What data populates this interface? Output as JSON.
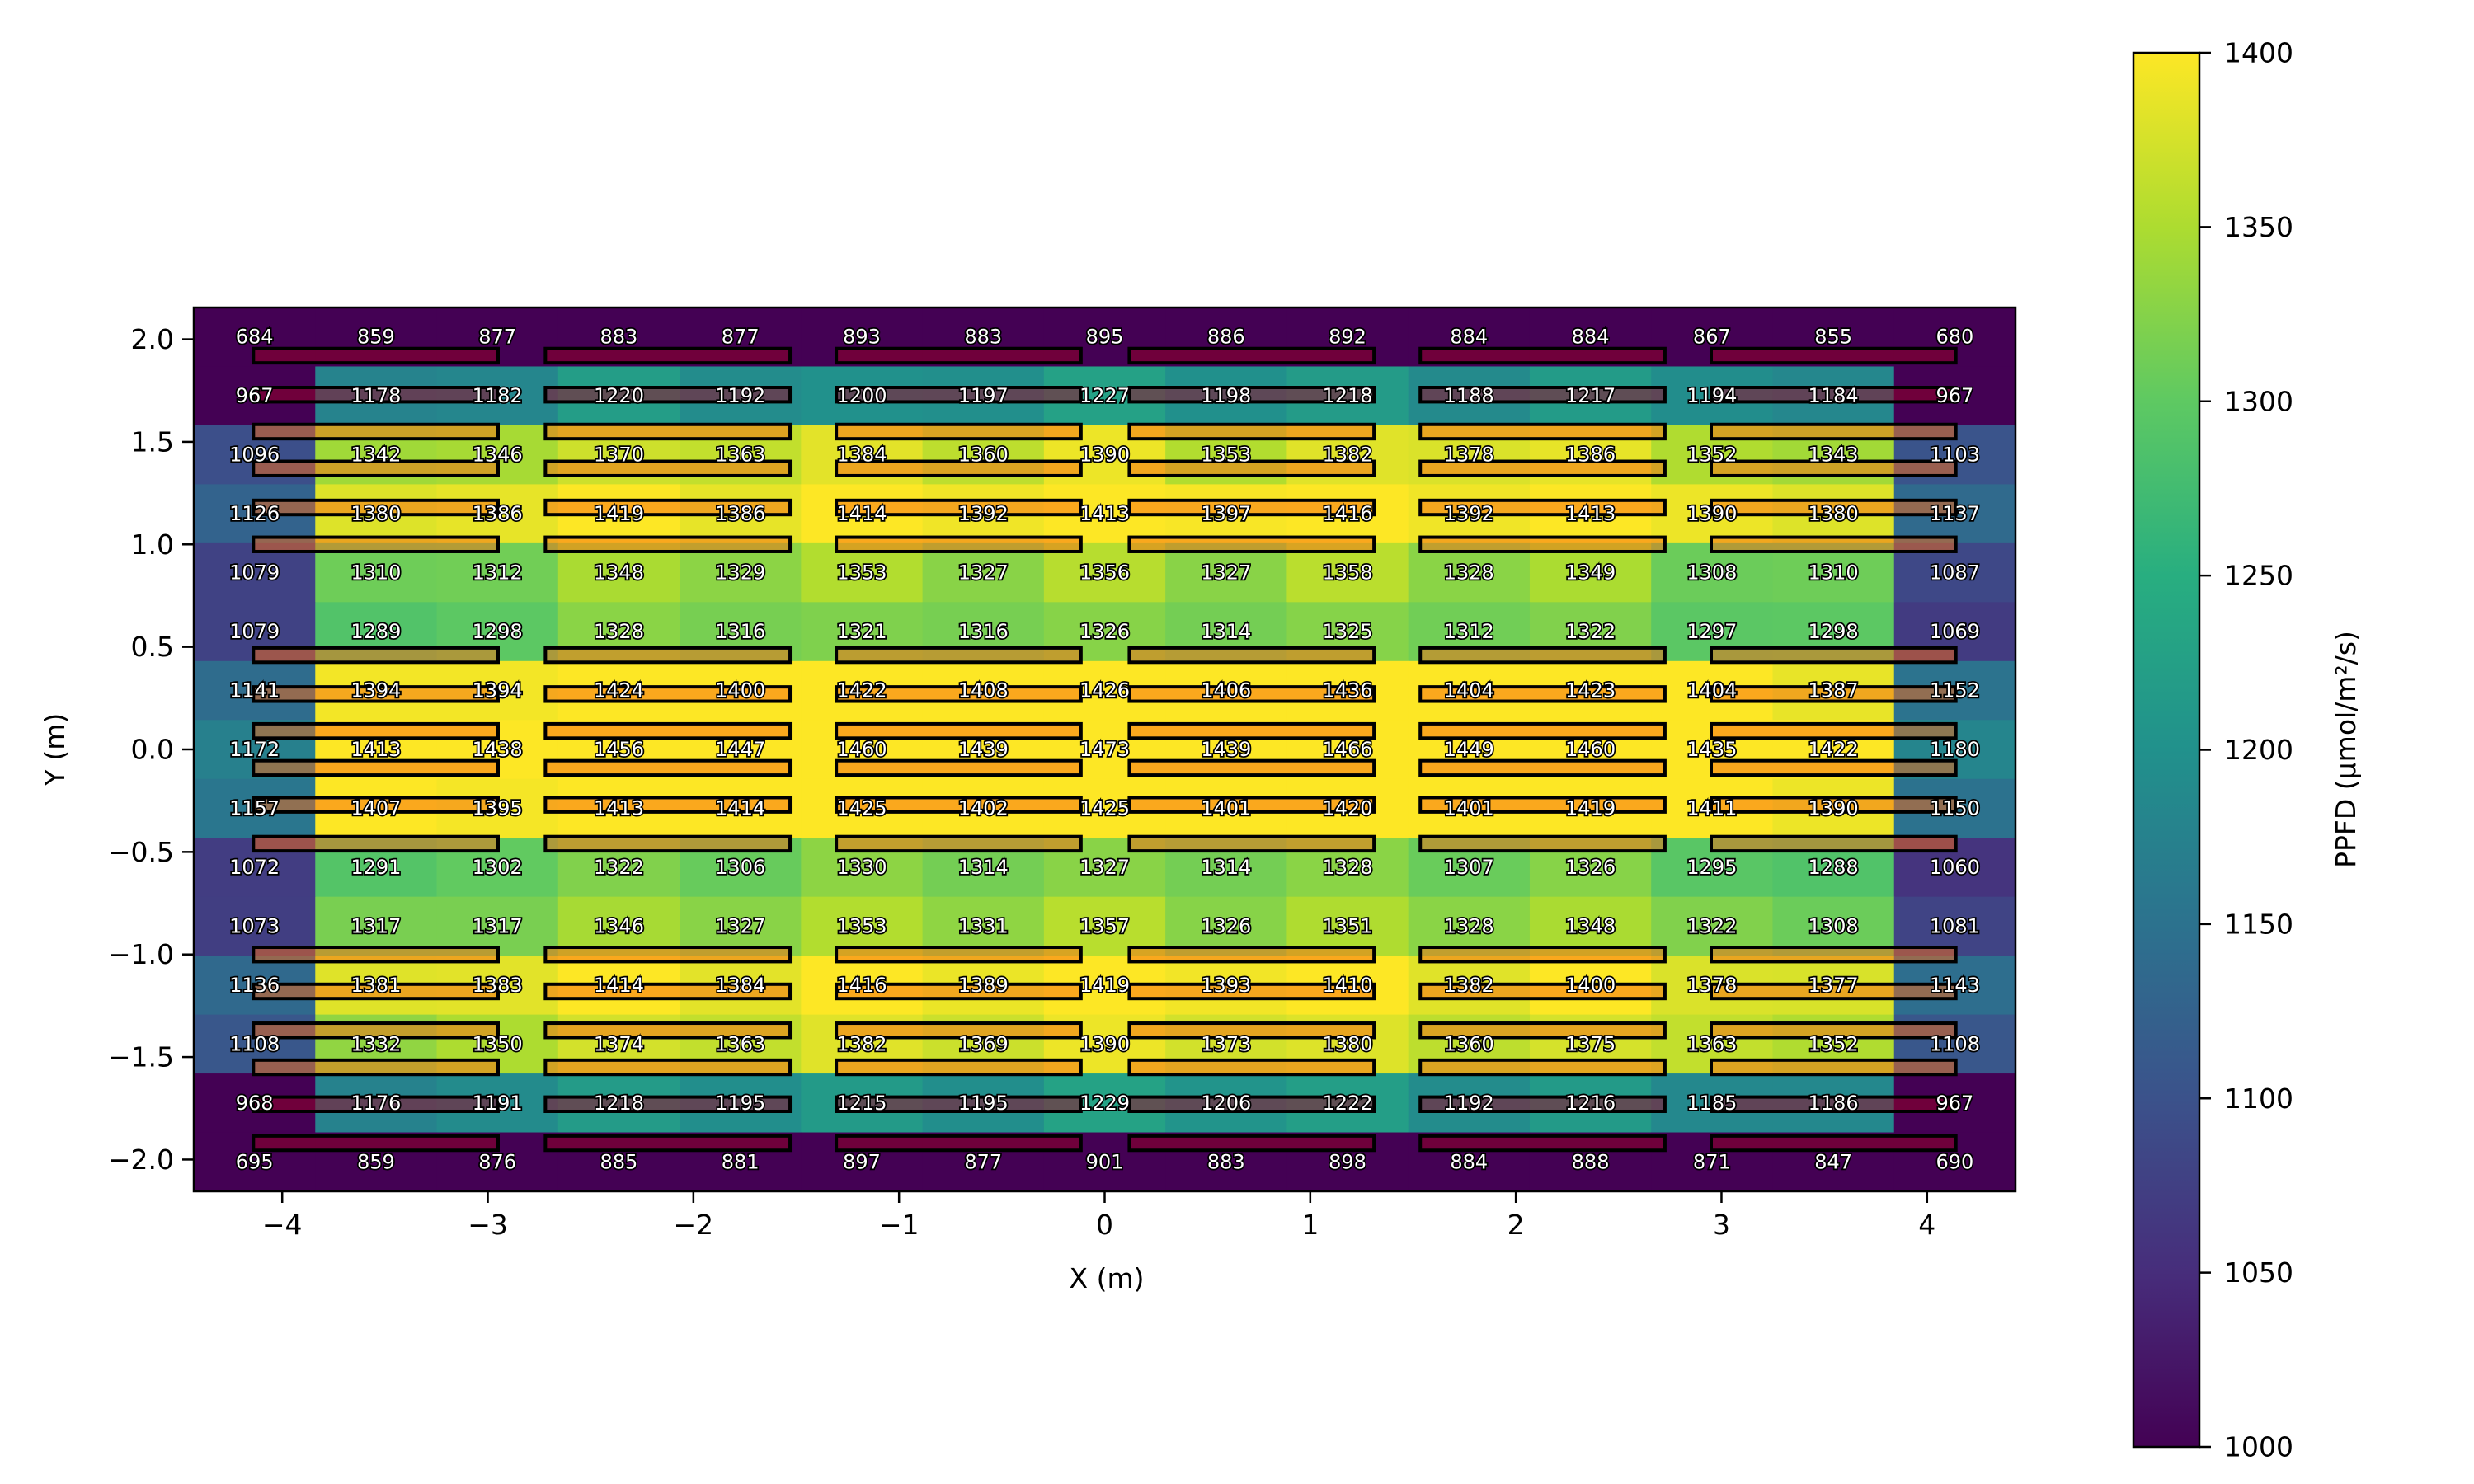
{
  "chart_data": {
    "type": "heatmap",
    "colormap": "viridis",
    "xlabel": "X (m)",
    "ylabel": "Y (m)",
    "colorbar_label": "PPFD (µmol/m²/s)",
    "xlim": [
      -4.43,
      4.43
    ],
    "ylim": [
      -2.155,
      2.155
    ],
    "clim": [
      1000,
      1400
    ],
    "xticks": [
      -4,
      -3,
      -2,
      -1,
      0,
      1,
      2,
      3,
      4
    ],
    "xtick_labels": [
      "−4",
      "−3",
      "−2",
      "−1",
      "0",
      "1",
      "2",
      "3",
      "4"
    ],
    "yticks": [
      2.0,
      1.5,
      1.0,
      0.5,
      0.0,
      -0.5,
      -1.0,
      -1.5,
      -2.0
    ],
    "ytick_labels": [
      "2.0",
      "1.5",
      "1.0",
      "0.5",
      "0.0",
      "−0.5",
      "−1.0",
      "−1.5",
      "−2.0"
    ],
    "colorbar_ticks": [
      1000,
      1050,
      1100,
      1150,
      1200,
      1250,
      1300,
      1350,
      1400
    ],
    "colorbar_tick_labels": [
      "1000",
      "1050",
      "1100",
      "1150",
      "1200",
      "1250",
      "1300",
      "1350",
      "1400"
    ],
    "grid": false,
    "values": [
      [
        684,
        859,
        877,
        883,
        877,
        893,
        883,
        895,
        886,
        892,
        884,
        884,
        867,
        855,
        680
      ],
      [
        967,
        1178,
        1182,
        1220,
        1192,
        1200,
        1197,
        1227,
        1198,
        1218,
        1188,
        1217,
        1194,
        1184,
        967
      ],
      [
        1096,
        1342,
        1346,
        1370,
        1363,
        1384,
        1360,
        1390,
        1353,
        1382,
        1378,
        1386,
        1352,
        1343,
        1103
      ],
      [
        1126,
        1380,
        1386,
        1419,
        1386,
        1414,
        1392,
        1413,
        1397,
        1416,
        1392,
        1413,
        1390,
        1380,
        1137
      ],
      [
        1079,
        1310,
        1312,
        1348,
        1329,
        1353,
        1327,
        1356,
        1327,
        1358,
        1328,
        1349,
        1308,
        1310,
        1087
      ],
      [
        1079,
        1289,
        1298,
        1328,
        1316,
        1321,
        1316,
        1326,
        1314,
        1325,
        1312,
        1322,
        1297,
        1298,
        1069
      ],
      [
        1141,
        1394,
        1394,
        1424,
        1400,
        1422,
        1408,
        1426,
        1406,
        1436,
        1404,
        1423,
        1404,
        1387,
        1152
      ],
      [
        1172,
        1413,
        1438,
        1456,
        1447,
        1460,
        1439,
        1473,
        1439,
        1466,
        1449,
        1460,
        1435,
        1422,
        1180
      ],
      [
        1157,
        1407,
        1395,
        1413,
        1414,
        1425,
        1402,
        1425,
        1401,
        1420,
        1401,
        1419,
        1411,
        1390,
        1150
      ],
      [
        1072,
        1291,
        1302,
        1322,
        1306,
        1330,
        1314,
        1327,
        1314,
        1328,
        1307,
        1326,
        1295,
        1288,
        1060
      ],
      [
        1073,
        1317,
        1317,
        1346,
        1327,
        1353,
        1331,
        1357,
        1326,
        1351,
        1328,
        1348,
        1322,
        1308,
        1081
      ],
      [
        1136,
        1381,
        1383,
        1414,
        1384,
        1416,
        1389,
        1419,
        1393,
        1410,
        1382,
        1400,
        1378,
        1377,
        1143
      ],
      [
        1108,
        1332,
        1350,
        1374,
        1363,
        1382,
        1369,
        1390,
        1373,
        1380,
        1360,
        1375,
        1363,
        1352,
        1108
      ],
      [
        968,
        1176,
        1191,
        1218,
        1195,
        1215,
        1195,
        1229,
        1206,
        1222,
        1192,
        1216,
        1185,
        1186,
        967
      ],
      [
        695,
        859,
        876,
        885,
        881,
        897,
        877,
        901,
        883,
        898,
        884,
        888,
        871,
        847,
        690
      ]
    ],
    "fixtures": {
      "x_centers": [
        -3.545,
        -2.125,
        -0.71,
        0.715,
        2.13,
        3.545
      ],
      "length": 1.19,
      "thickness": 0.07,
      "rows": [
        {
          "y": 1.92,
          "color": "#9b0022"
        },
        {
          "y": 1.73,
          "color": "#9b0022"
        },
        {
          "y": 1.55,
          "color": "#f76a15"
        },
        {
          "y": 1.37,
          "color": "#f76a15"
        },
        {
          "y": 1.18,
          "color": "#f76a15"
        },
        {
          "y": 1.0,
          "color": "#f76a15"
        },
        {
          "y": 0.46,
          "color": "#f76a15"
        },
        {
          "y": 0.27,
          "color": "#f76a15"
        },
        {
          "y": 0.09,
          "color": "#f76a15"
        },
        {
          "y": -0.09,
          "color": "#f76a15"
        },
        {
          "y": -0.27,
          "color": "#f76a15"
        },
        {
          "y": -0.46,
          "color": "#f76a15"
        },
        {
          "y": -1.0,
          "color": "#f76a15"
        },
        {
          "y": -1.18,
          "color": "#f76a15"
        },
        {
          "y": -1.37,
          "color": "#f76a15"
        },
        {
          "y": -1.55,
          "color": "#f76a15"
        },
        {
          "y": -1.73,
          "color": "#9b0022"
        },
        {
          "y": -1.92,
          "color": "#9b0022"
        }
      ]
    }
  }
}
